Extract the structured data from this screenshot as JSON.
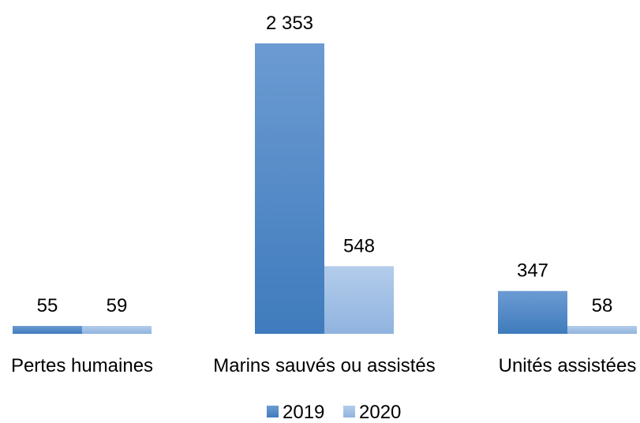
{
  "chart_data": {
    "type": "bar",
    "categories": [
      "Pertes humaines",
      "Marins sauvés ou assistés",
      "Unités assistées"
    ],
    "series": [
      {
        "name": "2019",
        "values": [
          55,
          2353,
          347
        ],
        "labels": [
          "55",
          "2 353",
          "347"
        ],
        "color_top": "#6c9bd2",
        "color_bottom": "#3f7bbd"
      },
      {
        "name": "2020",
        "values": [
          59,
          548,
          58
        ],
        "labels": [
          "59",
          "548",
          "58"
        ],
        "color_top": "#b3cdeb",
        "color_bottom": "#90b3df"
      }
    ],
    "ylim": [
      0,
      2353
    ],
    "grid": false,
    "legend_position": "bottom"
  }
}
